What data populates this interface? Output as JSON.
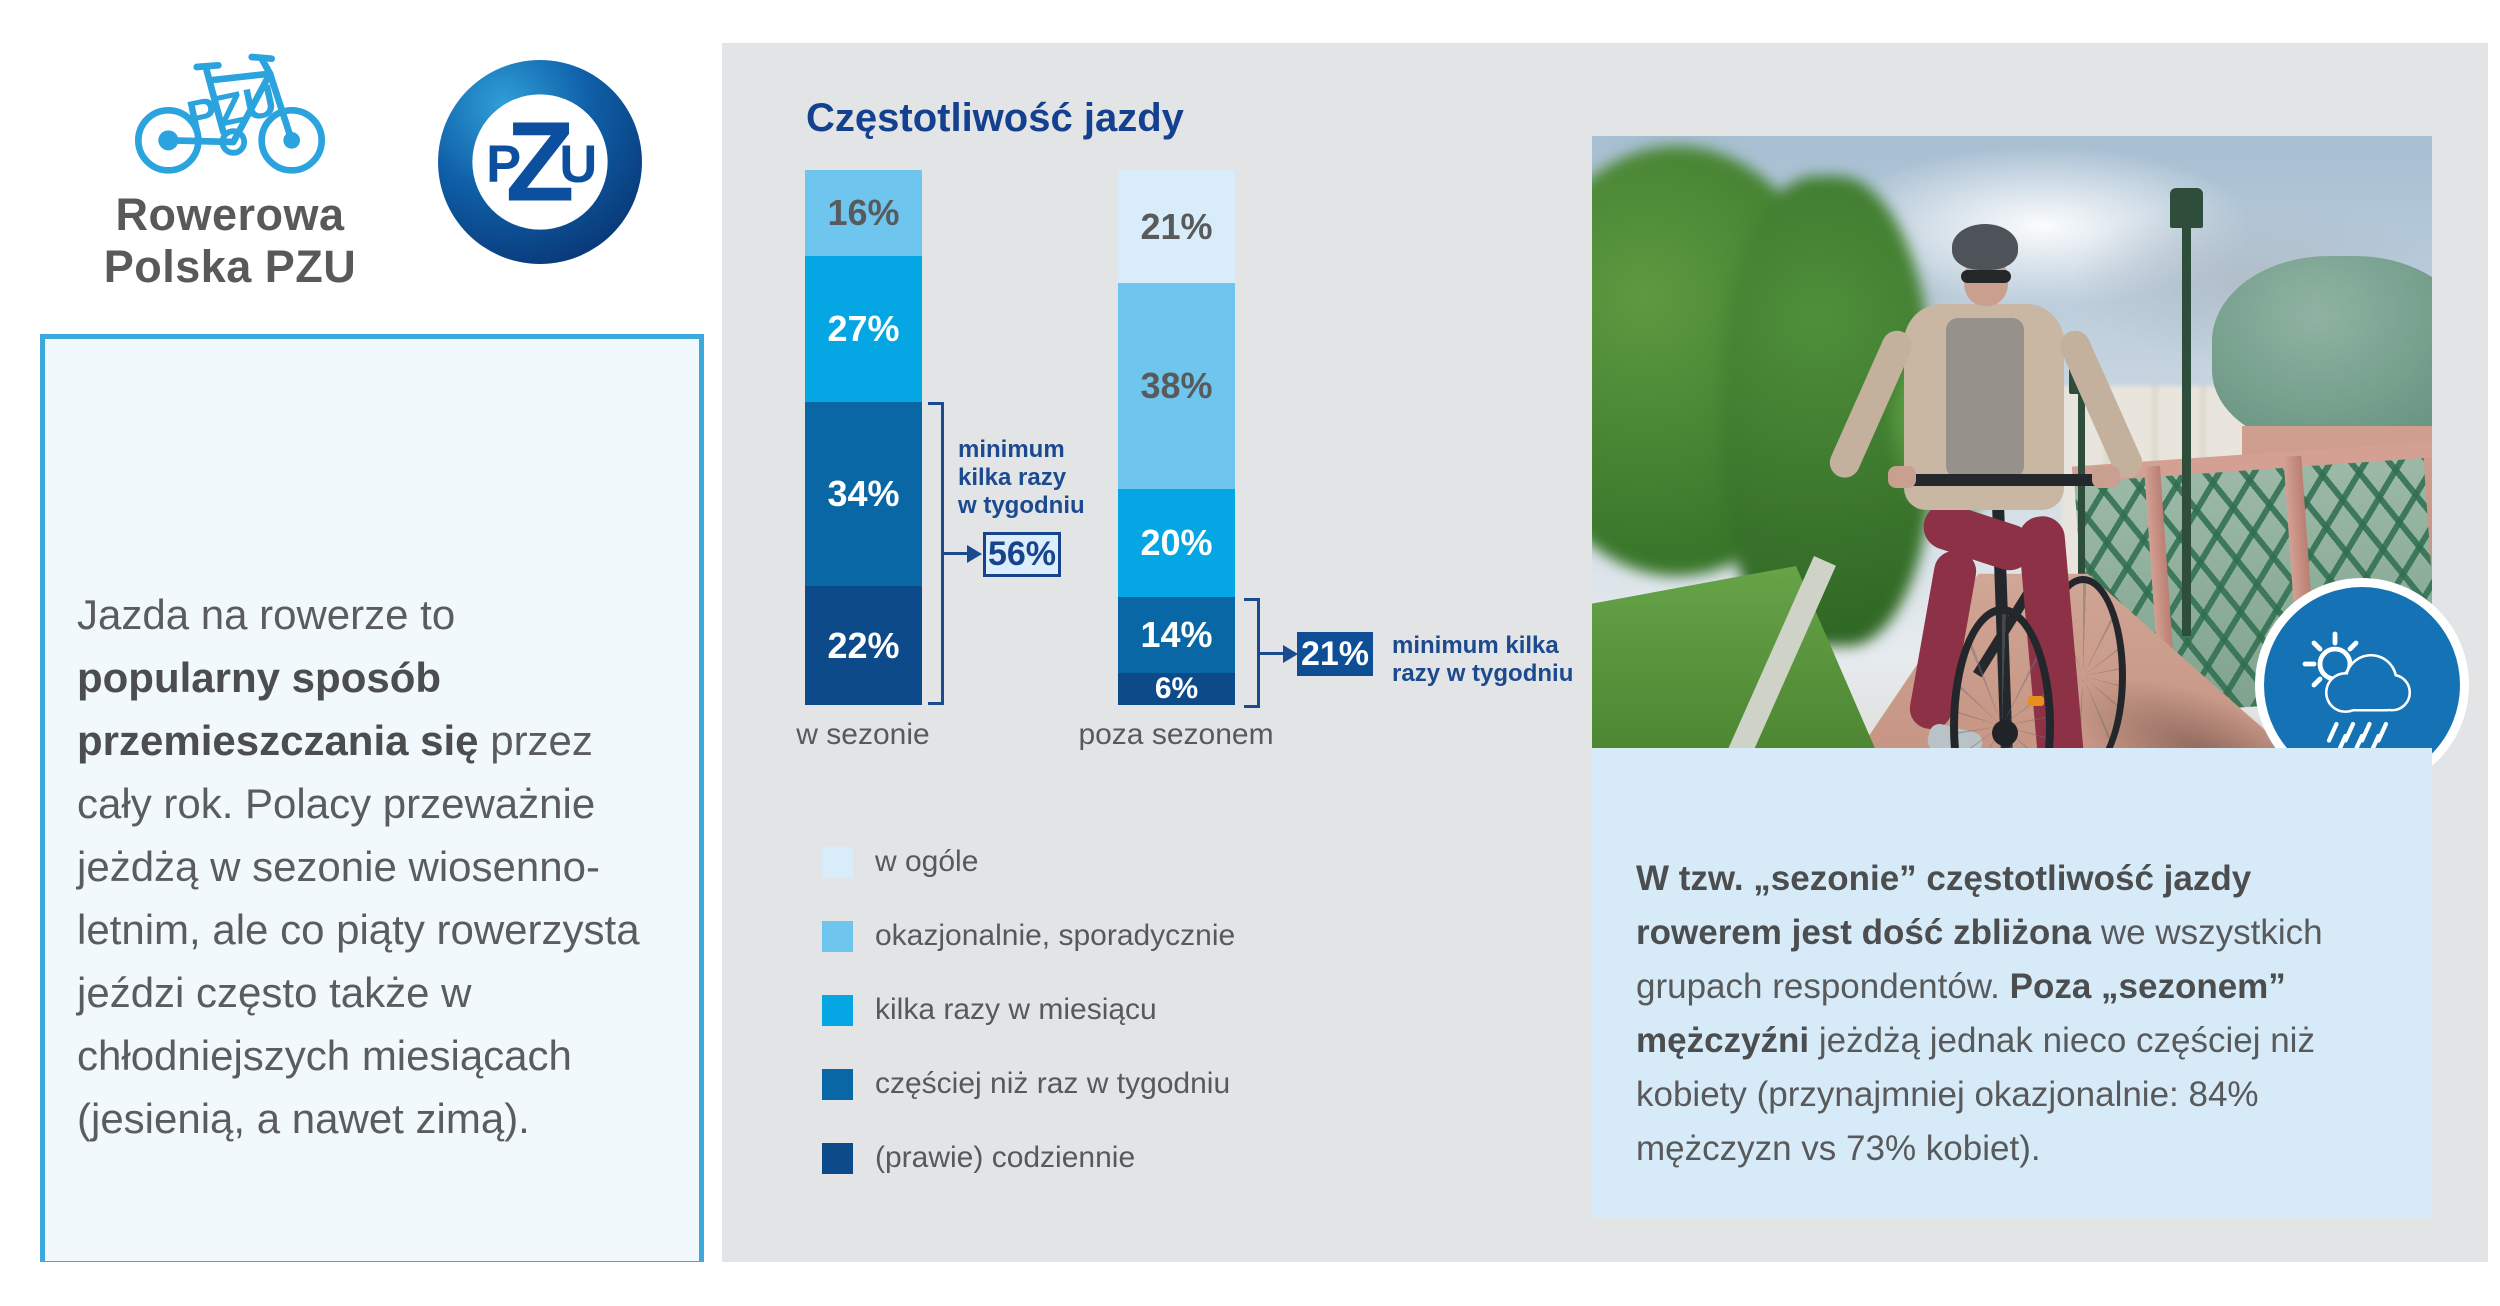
{
  "brand": {
    "name_line1": "Rowerowa",
    "name_line2": "Polska PZU",
    "pzu_logo_text": "PZU",
    "bike_blue": "#2ba3df",
    "pzu_navy": "#0b4f9e"
  },
  "intro_box": {
    "part1": "Jazda na rowerze to ",
    "bold": "popularny sposób przemieszczania się",
    "part2": " przez cały rok. Polacy przeważnie jeżdżą w sezonie wiosenno-letnim, ale co piąty rowerzysta jeździ często także w chłodniejszych miesiącach (jesienią, a nawet zimą)."
  },
  "chart": {
    "title": "Częstotliwość jazdy",
    "callout_season": {
      "lines": [
        "minimum",
        "kilka razy",
        "w tygodniu"
      ],
      "value": "56%"
    },
    "callout_offseason": {
      "lines": [
        "minimum kilka",
        "razy w tygodniu"
      ],
      "value": "21%"
    }
  },
  "chart_data": {
    "type": "bar",
    "subtype": "stacked",
    "title": "Częstotliwość jazdy",
    "categories": [
      "w sezonie",
      "poza sezonem"
    ],
    "series": [
      {
        "name": "w ogóle",
        "color": "#d8ecf9",
        "values": [
          0,
          21
        ]
      },
      {
        "name": "okazjonalnie, sporadycznie",
        "color": "#6ec6ef",
        "values": [
          16,
          38
        ]
      },
      {
        "name": "kilka razy w miesiącu",
        "color": "#04a7e3",
        "values": [
          27,
          20
        ]
      },
      {
        "name": "częściej niż raz w tygodniu",
        "color": "#0a67a5",
        "values": [
          34,
          14
        ]
      },
      {
        "name": "(prawie) codziennie",
        "color": "#0d4a8a",
        "values": [
          22,
          6
        ]
      }
    ],
    "value_suffix": "%",
    "annotations": [
      {
        "category": "w sezonie",
        "label": "minimum kilka razy w tygodniu",
        "value": 56
      },
      {
        "category": "poza sezonem",
        "label": "minimum kilka razy w tygodniu",
        "value": 21
      }
    ],
    "legend_position": "bottom-left",
    "grid": false,
    "ylim": [
      0,
      100
    ]
  },
  "summary_box": {
    "bold1": "W tzw. „sezonie” częstotliwość jazdy rowerem jest dość zbliżona",
    "part1": " we wszystkich grupach respondentów. ",
    "bold2": "Poza „sezonem” mężczyźni",
    "part2": " jeżdżą jednak nieco częściej niż kobiety (przynajmniej okazjonalnie: 84% mężczyzn vs 73% kobiet)."
  },
  "colors": {
    "panel_bg": "#e3e4e5",
    "intro_box_bg": "#f2f9fd",
    "intro_box_border": "#3ba9dd",
    "summary_box_bg": "#d7eaf7",
    "accent_navy": "#1b4a8f",
    "title_navy": "#14418f",
    "text_gray": "#58595b",
    "weather_badge_blue": "#1573b5"
  },
  "icons": {
    "weather": "sun-cloud-rain-icon",
    "bike_logo": "bicycle-icon",
    "pzu_logo": "pzu-oval-logo"
  }
}
